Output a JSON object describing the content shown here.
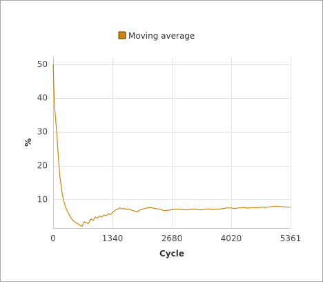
{
  "chart_data": {
    "type": "line",
    "title": "",
    "xlabel": "Cycle",
    "ylabel": "%",
    "xlim": [
      0,
      5361
    ],
    "ylim": [
      1.5,
      52
    ],
    "x_ticks": [
      0,
      1340,
      2680,
      4020,
      5361
    ],
    "y_ticks": [
      10,
      20,
      30,
      40,
      50
    ],
    "grid": true,
    "legend_position": "top-center",
    "series": [
      {
        "name": "Moving average",
        "color": "#c8860f",
        "x": [
          0,
          30,
          60,
          90,
          120,
          150,
          180,
          200,
          240,
          280,
          320,
          360,
          400,
          450,
          500,
          550,
          600,
          620,
          650,
          700,
          760,
          800,
          850,
          900,
          950,
          1000,
          1050,
          1100,
          1150,
          1200,
          1250,
          1300,
          1350,
          1400,
          1450,
          1500,
          1550,
          1600,
          1650,
          1700,
          1750,
          1800,
          1850,
          1900,
          1950,
          2000,
          2100,
          2200,
          2300,
          2400,
          2500,
          2600,
          2700,
          2800,
          2900,
          3000,
          3100,
          3200,
          3300,
          3400,
          3500,
          3600,
          3700,
          3800,
          3900,
          4000,
          4100,
          4200,
          4300,
          4400,
          4500,
          4600,
          4700,
          4800,
          4900,
          5000,
          5100,
          5200,
          5300,
          5361
        ],
        "y": [
          50,
          38,
          33,
          28,
          22,
          17,
          14,
          12,
          9.5,
          7.8,
          6.5,
          5.5,
          4.5,
          3.8,
          3.2,
          2.8,
          2.5,
          2.2,
          2.0,
          3.4,
          3.0,
          2.9,
          4.2,
          3.8,
          4.8,
          4.4,
          5.1,
          4.8,
          5.4,
          5.2,
          5.8,
          5.5,
          6.2,
          6.8,
          7.0,
          7.5,
          7.2,
          7.3,
          7.0,
          7.1,
          6.9,
          6.7,
          6.5,
          6.3,
          6.8,
          7.0,
          7.4,
          7.6,
          7.3,
          7.1,
          6.7,
          6.8,
          7.0,
          7.1,
          7.0,
          6.9,
          7.0,
          7.1,
          6.9,
          7.0,
          7.2,
          7.0,
          7.1,
          7.2,
          7.4,
          7.5,
          7.3,
          7.5,
          7.6,
          7.4,
          7.6,
          7.5,
          7.7,
          7.6,
          7.8,
          8.0,
          7.9,
          7.8,
          7.7,
          7.7
        ]
      }
    ]
  }
}
